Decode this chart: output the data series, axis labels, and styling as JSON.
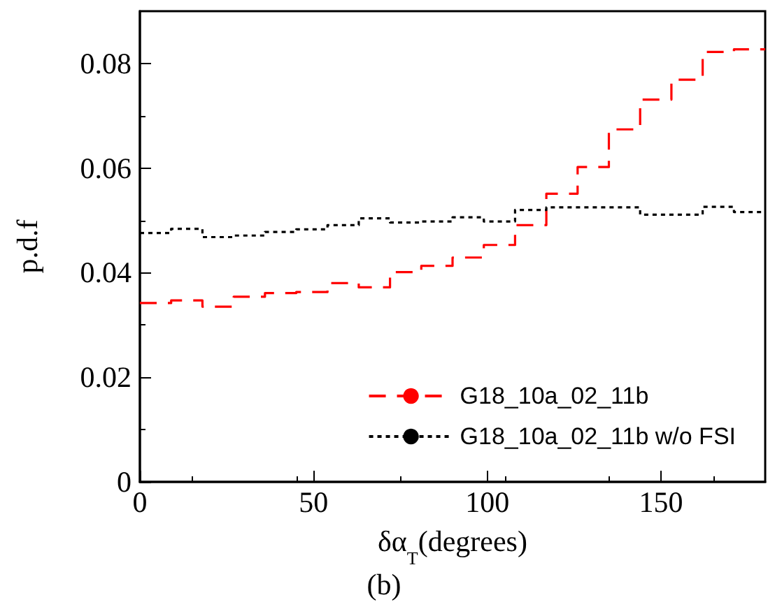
{
  "chart_data": {
    "type": "histogram",
    "xlabel": "δα$_{T}$(degrees)",
    "ylabel": "p.d.f",
    "annotations": [
      "(b)"
    ],
    "bins": [
      0,
      9,
      18,
      27,
      36,
      45,
      54,
      63,
      72,
      81,
      90,
      99,
      108,
      117,
      126,
      135,
      144,
      153,
      162,
      171,
      180
    ],
    "series": [
      {
        "name": "G18_10a_02_11b",
        "color": "#ff0000",
        "line_style": "dashed",
        "values": [
          0.0342,
          0.0347,
          0.0335,
          0.0354,
          0.0361,
          0.0363,
          0.038,
          0.0372,
          0.0401,
          0.0413,
          0.0429,
          0.0453,
          0.0491,
          0.0551,
          0.0602,
          0.0674,
          0.0731,
          0.0769,
          0.0822,
          0.0827
        ]
      },
      {
        "name": "G18_10a_02_11b w/o FSI",
        "color": "#000000",
        "line_style": "dotted",
        "values": [
          0.0476,
          0.0484,
          0.0468,
          0.0471,
          0.0478,
          0.0483,
          0.0491,
          0.0504,
          0.0496,
          0.0498,
          0.0506,
          0.0498,
          0.052,
          0.0525,
          0.0525,
          0.0525,
          0.0511,
          0.0511,
          0.0526,
          0.0516
        ]
      }
    ],
    "xlim": [
      0,
      180
    ],
    "xticks": [
      0,
      50,
      100,
      150
    ],
    "ylim": [
      0,
      0.09
    ],
    "yticks": [
      0,
      0.02,
      0.04,
      0.06,
      0.08
    ],
    "grid": false,
    "legend": "bottom right"
  }
}
